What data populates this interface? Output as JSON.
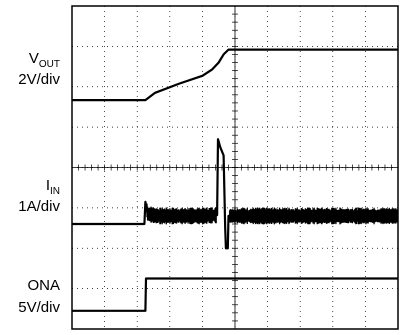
{
  "chart_data": {
    "type": "line",
    "title": "",
    "grid": true,
    "x_divisions": 10,
    "y_divisions": 8,
    "channels": [
      {
        "name_main": "V",
        "name_sub": "OUT",
        "scale": "2V/div",
        "points": [
          [
            0,
            5.67
          ],
          [
            2.25,
            5.67
          ],
          [
            2.55,
            5.85
          ],
          [
            3.3,
            6.08
          ],
          [
            4.0,
            6.27
          ],
          [
            4.3,
            6.43
          ],
          [
            4.5,
            6.6
          ],
          [
            4.65,
            6.8
          ],
          [
            4.8,
            6.92
          ],
          [
            10,
            6.92
          ]
        ]
      },
      {
        "name_main": "I",
        "name_sub": "IN",
        "scale": "1A/div",
        "points": [
          [
            0,
            2.6
          ],
          [
            2.22,
            2.6
          ],
          [
            2.25,
            3.15
          ],
          [
            2.32,
            2.85
          ],
          [
            2.6,
            2.8
          ],
          [
            3.2,
            2.8
          ],
          [
            4.0,
            2.8
          ],
          [
            4.45,
            2.82
          ],
          [
            4.48,
            4.7
          ],
          [
            4.55,
            4.5
          ],
          [
            4.65,
            4.3
          ],
          [
            4.7,
            2.5
          ],
          [
            4.72,
            2.0
          ],
          [
            4.78,
            2.0
          ],
          [
            4.8,
            2.8
          ],
          [
            10,
            2.8
          ]
        ],
        "noise_region": [
          2.3,
          10
        ]
      },
      {
        "name_main": "ONA",
        "name_sub": "",
        "scale": "5V/div",
        "points": [
          [
            0,
            0.45
          ],
          [
            2.25,
            0.45
          ],
          [
            2.27,
            1.25
          ],
          [
            10,
            1.25
          ]
        ]
      }
    ]
  }
}
